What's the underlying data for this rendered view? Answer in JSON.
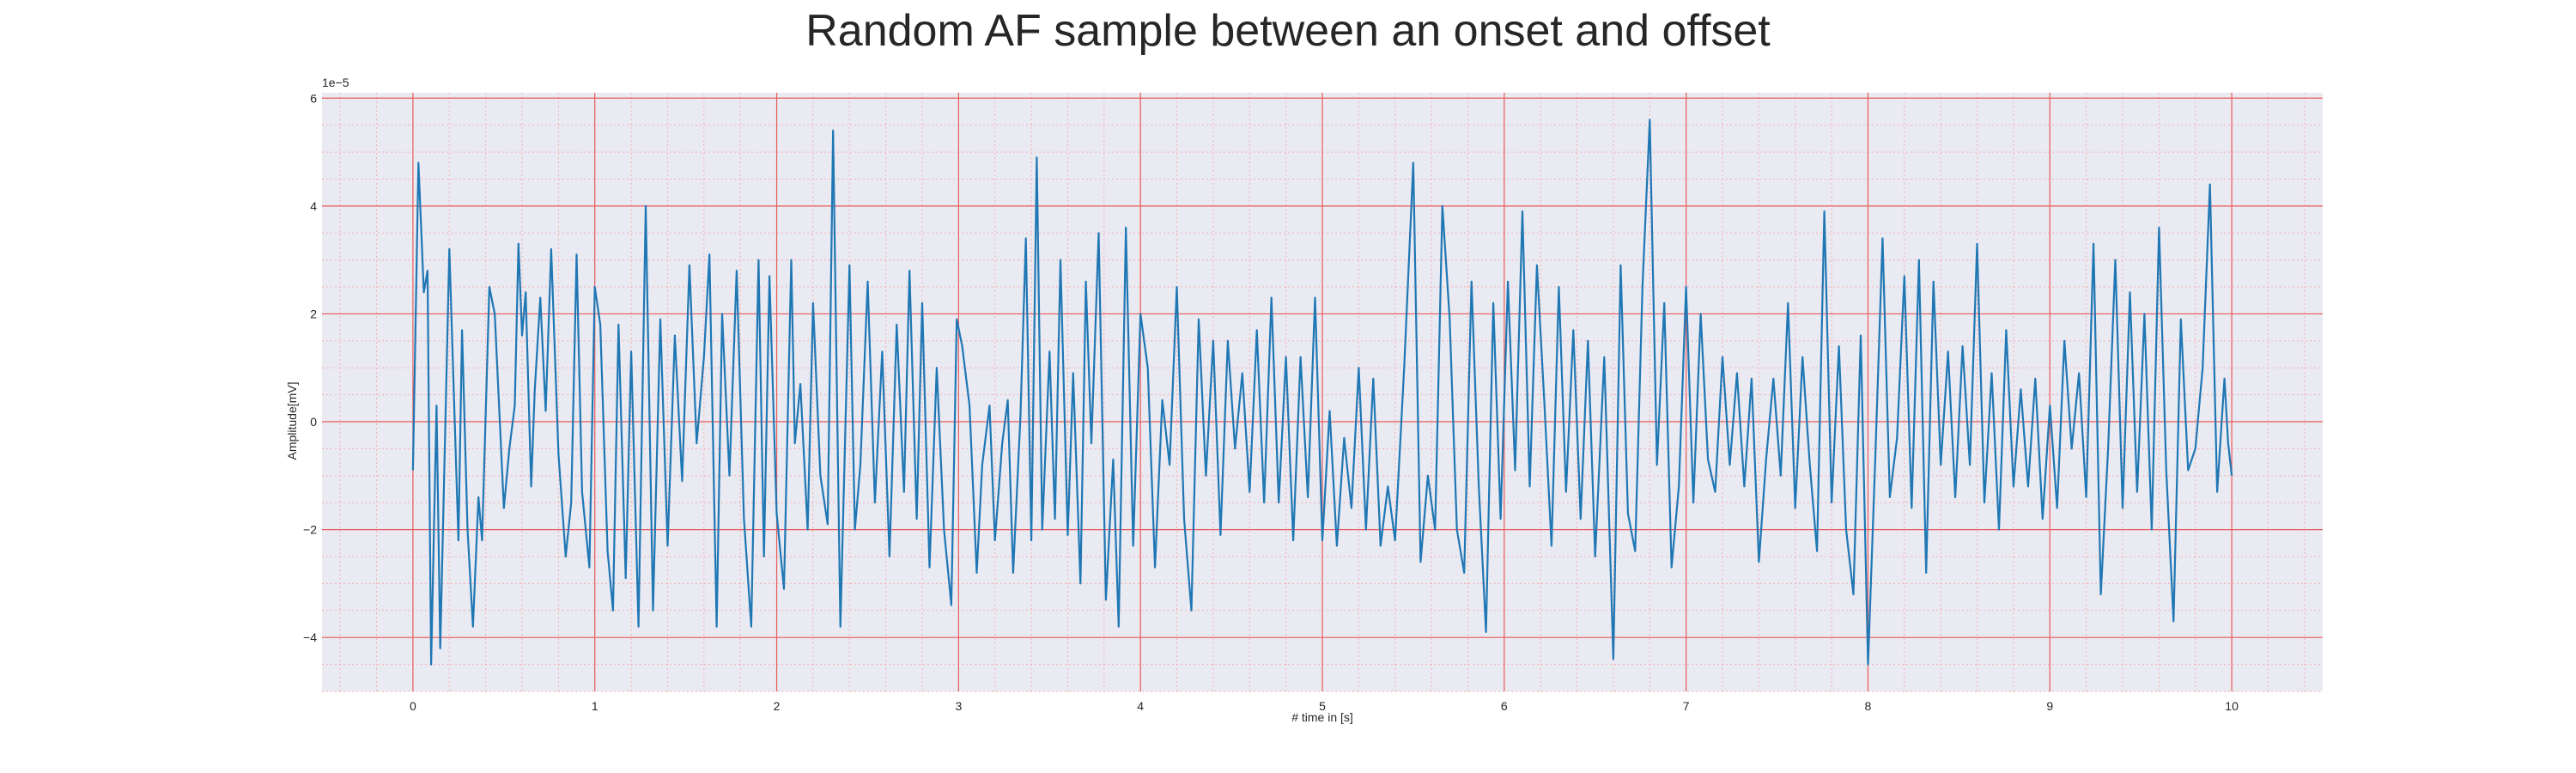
{
  "chart_data": {
    "type": "line",
    "title": "Random AF sample between an onset and offset",
    "xlabel": "# time in [s]",
    "ylabel": "Amplitude[mV]",
    "y_offset_label": "1e−5",
    "xlim": [
      -0.5,
      10.5
    ],
    "ylim": [
      -5.0,
      6.1
    ],
    "x_ticks": [
      0,
      1,
      2,
      3,
      4,
      5,
      6,
      7,
      8,
      9,
      10
    ],
    "y_ticks": [
      -4,
      -2,
      0,
      2,
      4,
      6
    ],
    "grid": true,
    "y_scale_exponent": -5,
    "series": [
      {
        "points": [
          [
            0.0,
            -0.9
          ],
          [
            0.03,
            4.8
          ],
          [
            0.06,
            2.4
          ],
          [
            0.08,
            2.8
          ],
          [
            0.1,
            -4.5
          ],
          [
            0.13,
            0.3
          ],
          [
            0.15,
            -4.2
          ],
          [
            0.2,
            3.2
          ],
          [
            0.25,
            -2.2
          ],
          [
            0.27,
            1.7
          ],
          [
            0.3,
            -2.0
          ],
          [
            0.33,
            -3.8
          ],
          [
            0.36,
            -1.4
          ],
          [
            0.38,
            -2.2
          ],
          [
            0.42,
            2.5
          ],
          [
            0.45,
            2.0
          ],
          [
            0.5,
            -1.6
          ],
          [
            0.53,
            -0.5
          ],
          [
            0.56,
            0.3
          ],
          [
            0.58,
            3.3
          ],
          [
            0.6,
            1.6
          ],
          [
            0.62,
            2.4
          ],
          [
            0.65,
            -1.2
          ],
          [
            0.67,
            0.6
          ],
          [
            0.7,
            2.3
          ],
          [
            0.73,
            0.2
          ],
          [
            0.76,
            3.2
          ],
          [
            0.8,
            -0.6
          ],
          [
            0.84,
            -2.5
          ],
          [
            0.87,
            -1.5
          ],
          [
            0.9,
            3.1
          ],
          [
            0.93,
            -1.3
          ],
          [
            0.97,
            -2.7
          ],
          [
            1.0,
            2.5
          ],
          [
            1.03,
            1.8
          ],
          [
            1.07,
            -2.4
          ],
          [
            1.1,
            -3.5
          ],
          [
            1.13,
            1.8
          ],
          [
            1.17,
            -2.9
          ],
          [
            1.2,
            1.3
          ],
          [
            1.24,
            -3.8
          ],
          [
            1.28,
            4.0
          ],
          [
            1.32,
            -3.5
          ],
          [
            1.36,
            1.9
          ],
          [
            1.4,
            -2.3
          ],
          [
            1.44,
            1.6
          ],
          [
            1.48,
            -1.1
          ],
          [
            1.52,
            2.9
          ],
          [
            1.56,
            -0.4
          ],
          [
            1.6,
            1.2
          ],
          [
            1.63,
            3.1
          ],
          [
            1.67,
            -3.8
          ],
          [
            1.7,
            2.0
          ],
          [
            1.74,
            -1.0
          ],
          [
            1.78,
            2.8
          ],
          [
            1.82,
            -1.8
          ],
          [
            1.86,
            -3.8
          ],
          [
            1.9,
            3.0
          ],
          [
            1.93,
            -2.5
          ],
          [
            1.96,
            2.7
          ],
          [
            2.0,
            -1.7
          ],
          [
            2.04,
            -3.1
          ],
          [
            2.08,
            3.0
          ],
          [
            2.1,
            -0.4
          ],
          [
            2.13,
            0.7
          ],
          [
            2.17,
            -2.0
          ],
          [
            2.2,
            2.2
          ],
          [
            2.24,
            -1.0
          ],
          [
            2.28,
            -1.9
          ],
          [
            2.31,
            5.4
          ],
          [
            2.35,
            -3.8
          ],
          [
            2.4,
            2.9
          ],
          [
            2.43,
            -2.0
          ],
          [
            2.46,
            -0.8
          ],
          [
            2.5,
            2.6
          ],
          [
            2.54,
            -1.5
          ],
          [
            2.58,
            1.3
          ],
          [
            2.62,
            -2.5
          ],
          [
            2.66,
            1.8
          ],
          [
            2.7,
            -1.3
          ],
          [
            2.73,
            2.8
          ],
          [
            2.77,
            -1.8
          ],
          [
            2.8,
            2.2
          ],
          [
            2.84,
            -2.7
          ],
          [
            2.88,
            1.0
          ],
          [
            2.92,
            -2.0
          ],
          [
            2.96,
            -3.4
          ],
          [
            2.99,
            1.9
          ],
          [
            3.02,
            1.4
          ],
          [
            3.06,
            0.3
          ],
          [
            3.1,
            -2.8
          ],
          [
            3.13,
            -0.8
          ],
          [
            3.17,
            0.3
          ],
          [
            3.2,
            -2.2
          ],
          [
            3.24,
            -0.4
          ],
          [
            3.27,
            0.4
          ],
          [
            3.3,
            -2.8
          ],
          [
            3.34,
            0.1
          ],
          [
            3.37,
            3.4
          ],
          [
            3.4,
            -2.2
          ],
          [
            3.43,
            4.9
          ],
          [
            3.46,
            -2.0
          ],
          [
            3.5,
            1.3
          ],
          [
            3.53,
            -1.8
          ],
          [
            3.56,
            3.0
          ],
          [
            3.6,
            -2.1
          ],
          [
            3.63,
            0.9
          ],
          [
            3.67,
            -3.0
          ],
          [
            3.7,
            2.6
          ],
          [
            3.73,
            -0.4
          ],
          [
            3.77,
            3.5
          ],
          [
            3.81,
            -3.3
          ],
          [
            3.85,
            -0.7
          ],
          [
            3.88,
            -3.8
          ],
          [
            3.92,
            3.6
          ],
          [
            3.96,
            -2.3
          ],
          [
            4.0,
            2.0
          ],
          [
            4.04,
            1.0
          ],
          [
            4.08,
            -2.7
          ],
          [
            4.12,
            0.4
          ],
          [
            4.16,
            -0.8
          ],
          [
            4.2,
            2.5
          ],
          [
            4.24,
            -1.8
          ],
          [
            4.28,
            -3.5
          ],
          [
            4.32,
            1.9
          ],
          [
            4.36,
            -1.0
          ],
          [
            4.4,
            1.5
          ],
          [
            4.44,
            -2.1
          ],
          [
            4.48,
            1.5
          ],
          [
            4.52,
            -0.5
          ],
          [
            4.56,
            0.9
          ],
          [
            4.6,
            -1.3
          ],
          [
            4.64,
            1.7
          ],
          [
            4.68,
            -1.5
          ],
          [
            4.72,
            2.3
          ],
          [
            4.76,
            -1.5
          ],
          [
            4.8,
            1.2
          ],
          [
            4.84,
            -2.2
          ],
          [
            4.88,
            1.2
          ],
          [
            4.92,
            -1.4
          ],
          [
            4.96,
            2.3
          ],
          [
            5.0,
            -2.2
          ],
          [
            5.04,
            0.2
          ],
          [
            5.08,
            -2.3
          ],
          [
            5.12,
            -0.3
          ],
          [
            5.16,
            -1.6
          ],
          [
            5.2,
            1.0
          ],
          [
            5.24,
            -2.0
          ],
          [
            5.28,
            0.8
          ],
          [
            5.32,
            -2.3
          ],
          [
            5.36,
            -1.2
          ],
          [
            5.4,
            -2.2
          ],
          [
            5.45,
            1.0
          ],
          [
            5.5,
            4.8
          ],
          [
            5.54,
            -2.6
          ],
          [
            5.58,
            -1.0
          ],
          [
            5.62,
            -2.0
          ],
          [
            5.66,
            4.0
          ],
          [
            5.7,
            1.9
          ],
          [
            5.74,
            -2.0
          ],
          [
            5.78,
            -2.8
          ],
          [
            5.82,
            2.6
          ],
          [
            5.86,
            -1.2
          ],
          [
            5.9,
            -3.9
          ],
          [
            5.94,
            2.2
          ],
          [
            5.98,
            -1.8
          ],
          [
            6.02,
            2.6
          ],
          [
            6.06,
            -0.9
          ],
          [
            6.1,
            3.9
          ],
          [
            6.14,
            -1.2
          ],
          [
            6.18,
            2.9
          ],
          [
            6.22,
            0.4
          ],
          [
            6.26,
            -2.3
          ],
          [
            6.3,
            2.5
          ],
          [
            6.34,
            -1.3
          ],
          [
            6.38,
            1.7
          ],
          [
            6.42,
            -1.8
          ],
          [
            6.46,
            1.5
          ],
          [
            6.5,
            -2.5
          ],
          [
            6.55,
            1.2
          ],
          [
            6.6,
            -4.4
          ],
          [
            6.64,
            2.9
          ],
          [
            6.68,
            -1.7
          ],
          [
            6.72,
            -2.4
          ],
          [
            6.76,
            2.5
          ],
          [
            6.8,
            5.6
          ],
          [
            6.84,
            -0.8
          ],
          [
            6.88,
            2.2
          ],
          [
            6.92,
            -2.7
          ],
          [
            6.96,
            -1.2
          ],
          [
            7.0,
            2.5
          ],
          [
            7.04,
            -1.5
          ],
          [
            7.08,
            2.0
          ],
          [
            7.12,
            -0.7
          ],
          [
            7.16,
            -1.3
          ],
          [
            7.2,
            1.2
          ],
          [
            7.24,
            -0.8
          ],
          [
            7.28,
            0.9
          ],
          [
            7.32,
            -1.2
          ],
          [
            7.36,
            0.8
          ],
          [
            7.4,
            -2.6
          ],
          [
            7.44,
            -0.7
          ],
          [
            7.48,
            0.8
          ],
          [
            7.52,
            -1.0
          ],
          [
            7.56,
            2.2
          ],
          [
            7.6,
            -1.6
          ],
          [
            7.64,
            1.2
          ],
          [
            7.68,
            -0.8
          ],
          [
            7.72,
            -2.4
          ],
          [
            7.76,
            3.9
          ],
          [
            7.8,
            -1.5
          ],
          [
            7.84,
            1.4
          ],
          [
            7.88,
            -2.0
          ],
          [
            7.92,
            -3.2
          ],
          [
            7.96,
            1.6
          ],
          [
            8.0,
            -4.5
          ],
          [
            8.04,
            -0.7
          ],
          [
            8.08,
            3.4
          ],
          [
            8.12,
            -1.4
          ],
          [
            8.16,
            -0.3
          ],
          [
            8.2,
            2.7
          ],
          [
            8.24,
            -1.6
          ],
          [
            8.28,
            3.0
          ],
          [
            8.32,
            -2.8
          ],
          [
            8.36,
            2.6
          ],
          [
            8.4,
            -0.8
          ],
          [
            8.44,
            1.3
          ],
          [
            8.48,
            -1.4
          ],
          [
            8.52,
            1.4
          ],
          [
            8.56,
            -0.8
          ],
          [
            8.6,
            3.3
          ],
          [
            8.64,
            -1.5
          ],
          [
            8.68,
            0.9
          ],
          [
            8.72,
            -2.0
          ],
          [
            8.76,
            1.7
          ],
          [
            8.8,
            -1.2
          ],
          [
            8.84,
            0.6
          ],
          [
            8.88,
            -1.2
          ],
          [
            8.92,
            0.8
          ],
          [
            8.96,
            -1.8
          ],
          [
            9.0,
            0.3
          ],
          [
            9.04,
            -1.6
          ],
          [
            9.08,
            1.5
          ],
          [
            9.12,
            -0.5
          ],
          [
            9.16,
            0.9
          ],
          [
            9.2,
            -1.4
          ],
          [
            9.24,
            3.3
          ],
          [
            9.28,
            -3.2
          ],
          [
            9.32,
            -0.5
          ],
          [
            9.36,
            3.0
          ],
          [
            9.4,
            -1.6
          ],
          [
            9.44,
            2.4
          ],
          [
            9.48,
            -1.3
          ],
          [
            9.52,
            2.0
          ],
          [
            9.56,
            -2.0
          ],
          [
            9.6,
            3.6
          ],
          [
            9.64,
            -0.9
          ],
          [
            9.68,
            -3.7
          ],
          [
            9.72,
            1.9
          ],
          [
            9.76,
            -0.9
          ],
          [
            9.8,
            -0.5
          ],
          [
            9.84,
            1.0
          ],
          [
            9.88,
            4.4
          ],
          [
            9.92,
            -1.3
          ],
          [
            9.96,
            0.8
          ],
          [
            9.98,
            -0.4
          ],
          [
            10.0,
            -1.0
          ]
        ]
      }
    ]
  }
}
